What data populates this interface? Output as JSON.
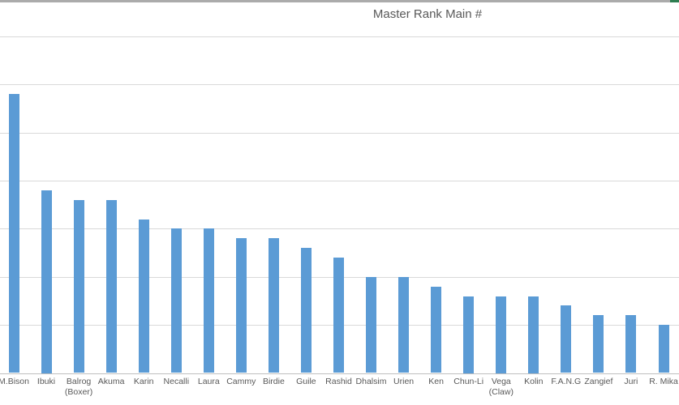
{
  "window": {
    "top_strip_color": "#ababab",
    "top_strip_accent_color": "#2e7d51"
  },
  "chart_data": {
    "type": "bar",
    "title": "Master Rank Main #",
    "categories": [
      "M.Bison",
      "Ibuki",
      "Balrog\n(Boxer)",
      "Akuma",
      "Karin",
      "Necalli",
      "Laura",
      "Cammy",
      "Birdie",
      "Guile",
      "Rashid",
      "Dhalsim",
      "Urien",
      "Ken",
      "Chun-Li",
      "Vega\n(Claw)",
      "Kolin",
      "F.A.N.G",
      "Zangief",
      "Juri",
      "R. Mika"
    ],
    "values": [
      29,
      19,
      18,
      18,
      16,
      15,
      15,
      14,
      14,
      13,
      12,
      10,
      10,
      9,
      8,
      8,
      8,
      7,
      6,
      6,
      5
    ],
    "xlabel": "",
    "ylabel": "",
    "ylim": [
      0,
      35
    ],
    "gridline_step": 5,
    "grid": true,
    "legend": false,
    "y_axis_labels_visible": false,
    "bar_color": "#5b9bd5",
    "gridline_color": "#d9d9d9",
    "axis_line_color": "#bfbfbf",
    "title_color": "#595959",
    "label_color": "#595959"
  }
}
